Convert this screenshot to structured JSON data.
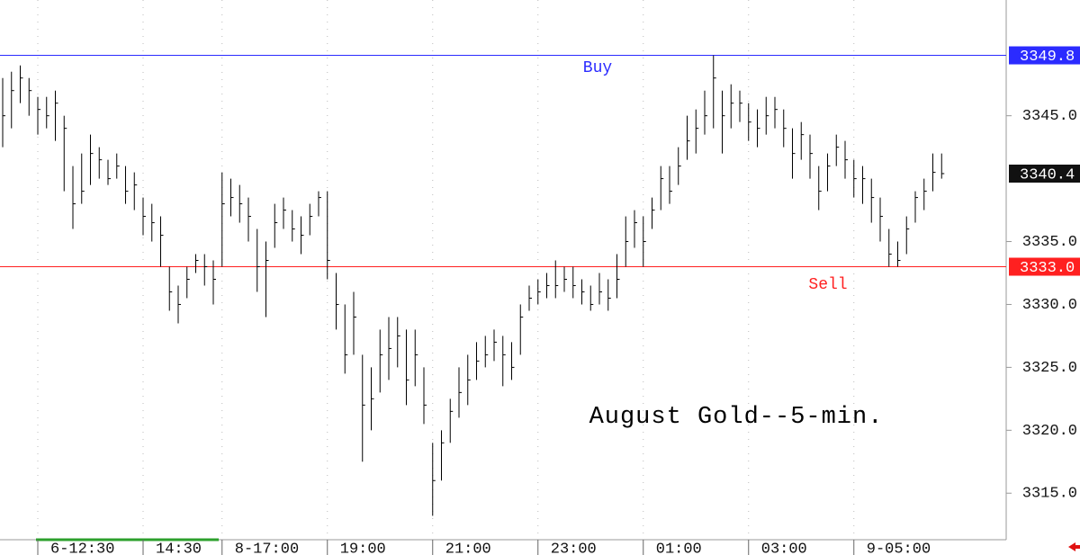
{
  "chart_data": {
    "type": "ohlc",
    "annotation": "August Gold--5-min.",
    "categories": [
      null,
      null,
      null,
      null,
      "6-12:30",
      null,
      null,
      null,
      null,
      null,
      null,
      null,
      null,
      null,
      null,
      null,
      "14:30",
      null,
      null,
      null,
      null,
      null,
      null,
      null,
      null,
      "8-17:00",
      null,
      null,
      null,
      null,
      null,
      null,
      null,
      null,
      null,
      null,
      null,
      "19:00",
      null,
      null,
      null,
      null,
      null,
      null,
      null,
      null,
      null,
      null,
      null,
      "21:00",
      null,
      null,
      null,
      null,
      null,
      null,
      null,
      null,
      null,
      null,
      null,
      "23:00",
      null,
      null,
      null,
      null,
      null,
      null,
      null,
      null,
      null,
      null,
      null,
      "01:00",
      null,
      null,
      null,
      null,
      null,
      null,
      null,
      null,
      null,
      null,
      null,
      "03:00",
      null,
      null,
      null,
      null,
      null,
      null,
      null,
      null,
      null,
      null,
      null,
      "9-05:00",
      null,
      null,
      null,
      null,
      null,
      null,
      null,
      null,
      null,
      null
    ],
    "high": [
      3348,
      3348.5,
      3349,
      3348,
      3346.5,
      3346.5,
      3347,
      3345,
      3341,
      3342,
      3343.5,
      3342.5,
      3341.5,
      3342,
      3341,
      3340.5,
      3338.5,
      3338,
      3337,
      3333,
      3331.5,
      3333,
      3334,
      3334,
      3333.5,
      3340.5,
      3340,
      3339.5,
      3338.5,
      3336,
      3335,
      3338,
      3338.5,
      3337.5,
      3337,
      3338,
      3339,
      3339,
      3332.5,
      3330,
      3331,
      3326,
      3325,
      3328,
      3329,
      3329,
      3328,
      3328,
      3325,
      3319,
      3320,
      3322.5,
      3325,
      3326,
      3327,
      3327.5,
      3328,
      3327.5,
      3327,
      3330,
      3331.5,
      3332,
      3332.5,
      3333.5,
      3333,
      3333,
      3332,
      3331.5,
      3332.5,
      3332,
      3334,
      3337,
      3337.5,
      3337,
      3338.5,
      3341,
      3341,
      3342.5,
      3345,
      3345.5,
      3347,
      3349.8,
      3347,
      3347.5,
      3347,
      3346,
      3345.5,
      3346.5,
      3346.5,
      3345.5,
      3344,
      3344.5,
      3343.5,
      3341,
      3342,
      3343.5,
      3343,
      3341.5,
      3341,
      3340,
      3338.5,
      3336,
      3335,
      3337,
      3339,
      3340,
      3342,
      3342
    ],
    "low": [
      3342.5,
      3344,
      3346,
      3345,
      3343.5,
      3344,
      3343,
      3339,
      3336,
      3338,
      3339.5,
      3340,
      3339.5,
      3340,
      3338,
      3337.5,
      3335.5,
      3335,
      3333,
      3329.5,
      3328.5,
      3330.5,
      3332.5,
      3331.5,
      3330,
      3333,
      3337,
      3336.5,
      3335,
      3331,
      3329,
      3334.5,
      3336,
      3335,
      3334,
      3335.5,
      3337,
      3332,
      3328,
      3324.5,
      3326,
      3317.5,
      3320,
      3323,
      3324,
      3325,
      3322,
      3323.5,
      3320.5,
      3313.2,
      3316,
      3319,
      3321,
      3322,
      3324,
      3325,
      3325.5,
      3323.5,
      3324,
      3326,
      3329.5,
      3330,
      3330.5,
      3330.5,
      3331,
      3330.5,
      3330,
      3329.5,
      3330,
      3329.5,
      3330.5,
      3333,
      3334.5,
      3333,
      3336,
      3337.5,
      3338,
      3339.5,
      3341.5,
      3342,
      3343.5,
      3344,
      3342,
      3344,
      3344.5,
      3343,
      3342.5,
      3343.5,
      3344,
      3342.5,
      3340,
      3341.5,
      3340,
      3337.5,
      3339,
      3341,
      3340,
      3338.5,
      3338,
      3336.5,
      3335,
      3333,
      3333,
      3334,
      3336.5,
      3337.5,
      3339,
      3340
    ],
    "close": [
      3345,
      3347,
      3348,
      3347,
      3345.5,
      3345,
      3346,
      3344,
      3338,
      3339,
      3342,
      3341.5,
      3340,
      3341,
      3339,
      3339.5,
      3337,
      3336.5,
      3335.5,
      3331,
      3330,
      3332,
      3333.5,
      3333,
      3332,
      3338,
      3338.5,
      3338,
      3337,
      3333,
      3333.5,
      3336.5,
      3337.5,
      3336,
      3335.5,
      3337,
      3338.5,
      3333.5,
      3330,
      3326,
      3329,
      3322,
      3322.5,
      3326,
      3326.5,
      3327.5,
      3324,
      3326,
      3322,
      3316,
      3319,
      3321.5,
      3323,
      3324,
      3325.5,
      3326,
      3327,
      3326,
      3325,
      3329,
      3330.5,
      3331,
      3331.5,
      3331.5,
      3332,
      3331.5,
      3331,
      3330,
      3331,
      3330.5,
      3332,
      3335,
      3336.5,
      3335,
      3337.5,
      3340,
      3339,
      3341,
      3343,
      3344,
      3345,
      3348,
      3345,
      3346,
      3346,
      3344.5,
      3344,
      3345,
      3345.5,
      3344,
      3342,
      3343.5,
      3342,
      3339,
      3341,
      3342.5,
      3341.5,
      3340,
      3340,
      3338.5,
      3337,
      3334,
      3333.5,
      3336,
      3338.5,
      3339,
      3340.5,
      3340.4
    ],
    "last": {
      "value": 3340.4,
      "label": "3340.4"
    },
    "levels": [
      {
        "name": "Buy",
        "value": 3349.8,
        "label": "3349.8",
        "color": "#2b2bff"
      },
      {
        "name": "Sell",
        "value": 3333,
        "label": "3333.0",
        "color": "#ff2020"
      }
    ],
    "color": "#000000",
    "ylim": [
      3311.3,
      3354.2
    ],
    "yticks": [
      {
        "value": 3315,
        "label": "3315.0"
      },
      {
        "value": 3320,
        "label": "3320.0"
      },
      {
        "value": 3325,
        "label": "3325.0"
      },
      {
        "value": 3330,
        "label": "3330.0"
      },
      {
        "value": 3335,
        "label": "3335.0"
      },
      {
        "value": 3345,
        "label": "3345.0"
      }
    ]
  }
}
